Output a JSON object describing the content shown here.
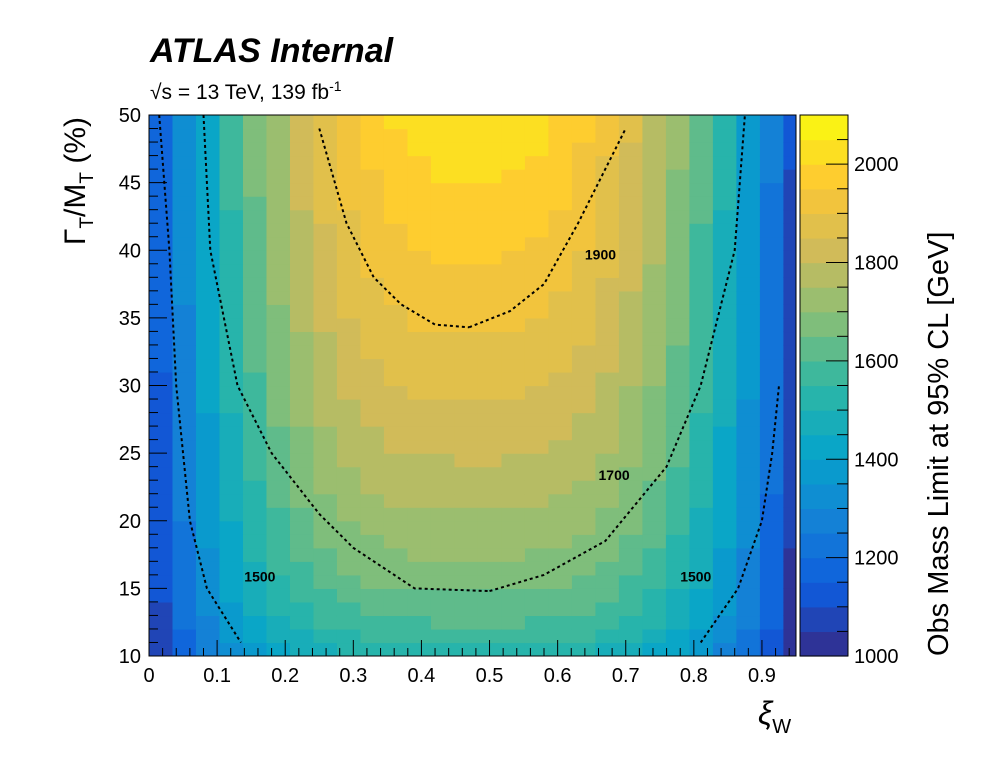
{
  "header": {
    "title": "ATLAS Internal",
    "subtitle_sqrt": "√s",
    "subtitle_rest": " = 13 TeV, 139 fb",
    "subtitle_sup": "-1"
  },
  "chart_data": {
    "type": "heatmap",
    "x": {
      "label_main": "ξ",
      "label_sub": "W",
      "range": [
        0,
        0.95
      ],
      "ticks": [
        0,
        0.1,
        0.2,
        0.3,
        0.4,
        0.5,
        0.6,
        0.7,
        0.8,
        0.9
      ],
      "tick_labels": [
        "0",
        "0.1",
        "0.2",
        "0.3",
        "0.4",
        "0.5",
        "0.6",
        "0.7",
        "0.8",
        "0.9"
      ],
      "bin_width": 0.0345
    },
    "y": {
      "label_1": "Γ",
      "label_sub1": "T",
      "label_2": "/M",
      "label_sub2": "T",
      "label_3": " (%)",
      "range": [
        10,
        50
      ],
      "ticks": [
        10,
        15,
        20,
        25,
        30,
        35,
        40,
        45,
        50
      ],
      "tick_labels": [
        "10",
        "15",
        "20",
        "25",
        "30",
        "35",
        "40",
        "45",
        "50"
      ],
      "bin_width": 1
    },
    "z": {
      "label": "Obs Mass Limit at 95% CL [GeV]",
      "range": [
        1000,
        2100
      ],
      "ticks": [
        1000,
        1200,
        1400,
        1600,
        1800,
        2000
      ],
      "tick_labels": [
        "1000",
        "1200",
        "1400",
        "1600",
        "1800",
        "2000"
      ]
    },
    "palette": [
      "#352a87",
      "#0f5cdd",
      "#1481d6",
      "#06a4ca",
      "#2eb7a4",
      "#87bf77",
      "#d1bb59",
      "#fec832",
      "#f9fb0e"
    ],
    "contours": [
      {
        "label": "1500",
        "left": [
          [
            0.015,
            50
          ],
          [
            0.03,
            40
          ],
          [
            0.04,
            30
          ],
          [
            0.06,
            20
          ],
          [
            0.085,
            15
          ],
          [
            0.135,
            11
          ]
        ],
        "right": [
          [
            0.81,
            11
          ],
          [
            0.865,
            15
          ],
          [
            0.9,
            20
          ],
          [
            0.915,
            25
          ],
          [
            0.925,
            30
          ]
        ]
      },
      {
        "label": "1700",
        "left": [
          [
            0.08,
            50
          ],
          [
            0.09,
            40
          ],
          [
            0.13,
            30
          ],
          [
            0.18,
            25
          ],
          [
            0.25,
            20.5
          ],
          [
            0.3,
            18
          ],
          [
            0.39,
            15
          ],
          [
            0.5,
            14.8
          ]
        ],
        "right": [
          [
            0.5,
            14.8
          ],
          [
            0.58,
            16
          ],
          [
            0.67,
            18.5
          ],
          [
            0.76,
            24
          ],
          [
            0.81,
            30
          ],
          [
            0.86,
            40
          ],
          [
            0.875,
            50
          ]
        ]
      },
      {
        "label": "1900",
        "left": [
          [
            0.25,
            49
          ],
          [
            0.29,
            42
          ],
          [
            0.33,
            38
          ],
          [
            0.37,
            36
          ],
          [
            0.42,
            34.5
          ],
          [
            0.47,
            34.3
          ]
        ],
        "right": [
          [
            0.47,
            34.3
          ],
          [
            0.53,
            35.5
          ],
          [
            0.58,
            37.5
          ],
          [
            0.63,
            42
          ],
          [
            0.7,
            49
          ]
        ]
      }
    ],
    "contour_labels": [
      {
        "text": "1500",
        "x": 0.14,
        "y": 15.5
      },
      {
        "text": "1500",
        "x": 0.78,
        "y": 15.5
      },
      {
        "text": "1700",
        "x": 0.66,
        "y": 23
      },
      {
        "text": "1900",
        "x": 0.64,
        "y": 39.3
      }
    ]
  }
}
